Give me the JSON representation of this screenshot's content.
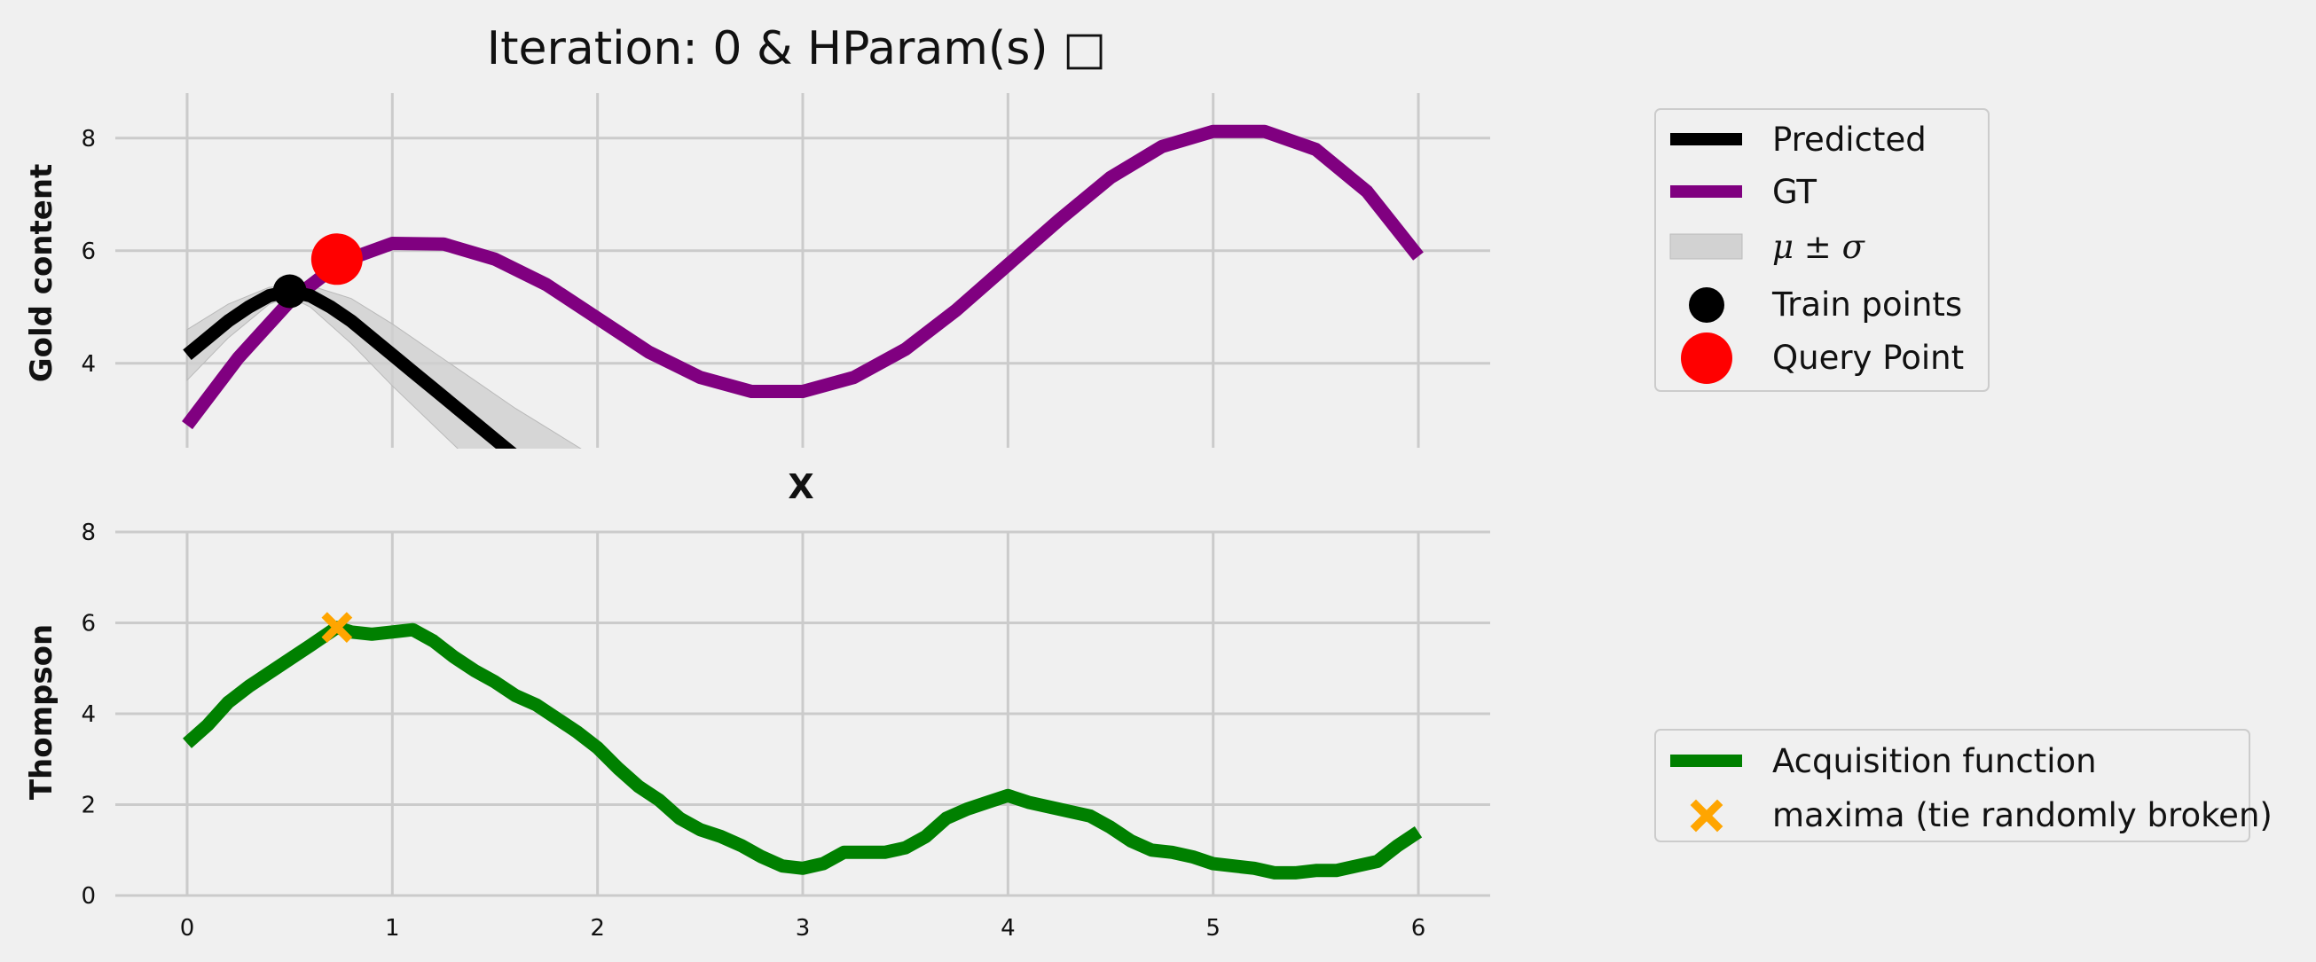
{
  "chart_data": [
    {
      "panel": "top",
      "type": "line",
      "title": "Iteration: 0 & HParam(s) □",
      "xlabel": "X",
      "ylabel": "Gold content",
      "xlim": [
        -0.35,
        6.35
      ],
      "ylim": [
        2.5,
        8.8
      ],
      "yticks": [
        4,
        6,
        8
      ],
      "xticks": [
        0,
        1,
        2,
        3,
        4,
        5,
        6
      ],
      "grid": true,
      "legend_position": "outside-top-right",
      "series": [
        {
          "name": "Predicted",
          "color": "#000000",
          "x": [
            0,
            0.1,
            0.2,
            0.3,
            0.4,
            0.5,
            0.6,
            0.7,
            0.8,
            0.9,
            1.0,
            1.1,
            1.2,
            1.3,
            1.4,
            1.5,
            1.6
          ],
          "y": [
            4.15,
            4.45,
            4.75,
            5.0,
            5.2,
            5.28,
            5.2,
            5.0,
            4.75,
            4.45,
            4.15,
            3.85,
            3.55,
            3.25,
            2.95,
            2.65,
            2.35
          ]
        },
        {
          "name": "GT",
          "color": "#800080",
          "x": [
            0,
            0.25,
            0.5,
            0.75,
            1.0,
            1.25,
            1.5,
            1.75,
            2.0,
            2.25,
            2.5,
            2.75,
            3.0,
            3.25,
            3.5,
            3.75,
            4.0,
            4.25,
            4.5,
            4.75,
            5.0,
            5.25,
            5.5,
            5.75,
            6.0
          ],
          "y": [
            2.9,
            4.1,
            5.1,
            5.8,
            6.13,
            6.12,
            5.85,
            5.4,
            4.8,
            4.2,
            3.75,
            3.5,
            3.5,
            3.75,
            4.25,
            4.95,
            5.75,
            6.55,
            7.3,
            7.85,
            8.12,
            8.12,
            7.8,
            7.05,
            5.9
          ]
        }
      ],
      "band": {
        "name": "μ ± σ",
        "color": "#cfcfcf",
        "x": [
          0,
          0.2,
          0.4,
          0.5,
          0.6,
          0.8,
          1.0,
          1.2,
          1.4,
          1.6,
          1.8,
          2.0
        ],
        "upper": [
          4.6,
          5.05,
          5.35,
          5.38,
          5.38,
          5.15,
          4.7,
          4.2,
          3.7,
          3.2,
          2.75,
          2.3
        ],
        "lower": [
          3.7,
          4.45,
          5.05,
          5.18,
          5.0,
          4.35,
          3.6,
          2.9,
          2.2,
          1.6,
          1.0,
          0.5
        ]
      },
      "train_points": {
        "name": "Train points",
        "color": "#000000",
        "x": [
          0.5
        ],
        "y": [
          5.28
        ]
      },
      "query_point": {
        "name": "Query Point",
        "color": "#ff0000",
        "x": [
          0.73
        ],
        "y": [
          5.85
        ]
      }
    },
    {
      "panel": "bottom",
      "type": "line",
      "ylabel": "Thompson",
      "xlim": [
        -0.35,
        6.35
      ],
      "ylim": [
        0,
        8
      ],
      "yticks": [
        0,
        2,
        4,
        6,
        8
      ],
      "xticks": [
        0,
        1,
        2,
        3,
        4,
        5,
        6
      ],
      "grid": true,
      "legend_position": "outside-bottom-right",
      "series": [
        {
          "name": "Acquisition function",
          "color": "#008000",
          "x": [
            0,
            0.1,
            0.2,
            0.3,
            0.4,
            0.5,
            0.6,
            0.73,
            0.8,
            0.9,
            1.0,
            1.1,
            1.2,
            1.3,
            1.4,
            1.5,
            1.6,
            1.7,
            1.8,
            1.9,
            2.0,
            2.1,
            2.2,
            2.3,
            2.4,
            2.5,
            2.6,
            2.7,
            2.8,
            2.9,
            3.0,
            3.1,
            3.2,
            3.3,
            3.4,
            3.5,
            3.6,
            3.7,
            3.8,
            3.9,
            4.0,
            4.1,
            4.2,
            4.3,
            4.4,
            4.5,
            4.6,
            4.7,
            4.8,
            4.9,
            5.0,
            5.1,
            5.2,
            5.3,
            5.4,
            5.5,
            5.6,
            5.7,
            5.8,
            5.9,
            6.0
          ],
          "y": [
            3.35,
            3.75,
            4.25,
            4.6,
            4.9,
            5.2,
            5.5,
            5.9,
            5.8,
            5.75,
            5.8,
            5.85,
            5.6,
            5.25,
            4.95,
            4.7,
            4.4,
            4.2,
            3.9,
            3.6,
            3.25,
            2.8,
            2.4,
            2.1,
            1.7,
            1.45,
            1.3,
            1.1,
            0.85,
            0.65,
            0.6,
            0.7,
            0.95,
            0.95,
            0.95,
            1.05,
            1.3,
            1.7,
            1.9,
            2.05,
            2.2,
            2.05,
            1.95,
            1.85,
            1.75,
            1.5,
            1.2,
            1.0,
            0.95,
            0.85,
            0.7,
            0.65,
            0.6,
            0.5,
            0.5,
            0.55,
            0.55,
            0.65,
            0.75,
            1.1,
            1.4
          ]
        }
      ],
      "maxima": {
        "name": "maxima (tie randomly broken)",
        "color": "#ffa500",
        "x": [
          0.73
        ],
        "y": [
          5.9
        ]
      }
    }
  ]
}
